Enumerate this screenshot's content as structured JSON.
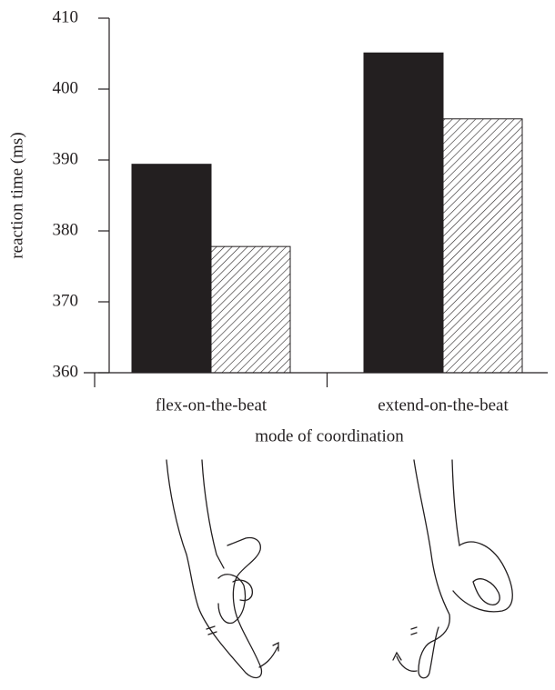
{
  "chart_data": {
    "type": "bar",
    "x_label": "mode of coordination",
    "y_label": "reaction time (ms)",
    "categories": [
      "flex-on-the-beat",
      "extend-on-the-beat"
    ],
    "series": [
      {
        "color": "#231f20",
        "values": [
          389.4,
          405.1
        ]
      },
      {
        "color": "#231f20",
        "hatch": true,
        "values": [
          377.8,
          395.8
        ]
      }
    ],
    "ylim": [
      360,
      410
    ],
    "yticks": [
      360,
      370,
      380,
      390,
      400,
      410
    ]
  }
}
